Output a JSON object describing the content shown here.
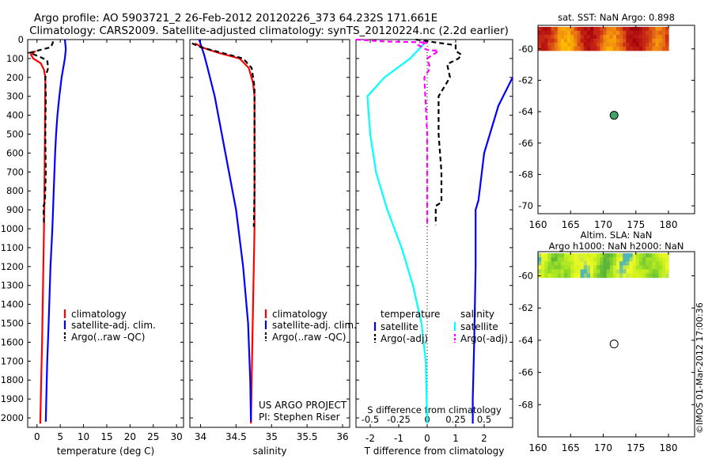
{
  "header": {
    "line1": "Argo profile: AO 5903721_2 26-Feb-2012 20120226_373 64.232S 171.661E",
    "line2": "Climatology: CARS2009. Satellite-adjusted climatology: synTS_20120224.nc (2.2d earlier)"
  },
  "footer": {
    "project": "US ARGO PROJECT",
    "pi": "PI: Stephen Riser",
    "stamp": "©IMOS 01-Mar-2012 17:00:36"
  },
  "colors": {
    "climatology": "#ff0000",
    "satellite": "#0000ff",
    "argo": "#000000",
    "sal_satellite": "#00ffff",
    "sal_argo": "#ff00ff"
  },
  "chart_data": [
    {
      "id": "temperature",
      "type": "line",
      "xlabel": "temperature (deg C)",
      "ylabel": "",
      "xlim": [
        -2,
        31.5
      ],
      "ylim": [
        2050,
        0
      ],
      "xticks": [
        0,
        5,
        10,
        15,
        20,
        25,
        30
      ],
      "yticks": [
        0,
        100,
        200,
        300,
        400,
        500,
        600,
        700,
        800,
        900,
        1000,
        1100,
        1200,
        1300,
        1400,
        1500,
        1600,
        1700,
        1800,
        1900,
        2000
      ],
      "legend": [
        "climatology",
        "satellite-adj. clim.",
        "Argo(..raw -QC)"
      ],
      "series": [
        {
          "name": "climatology",
          "style": "solid",
          "points": [
            [
              -0.3,
              60
            ],
            [
              -1.3,
              80
            ],
            [
              -0.8,
              100
            ],
            [
              0.8,
              125
            ],
            [
              1.5,
              160
            ],
            [
              1.8,
              200
            ],
            [
              1.75,
              300
            ],
            [
              1.7,
              500
            ],
            [
              1.6,
              800
            ],
            [
              1.5,
              1000
            ],
            [
              1.3,
              1300
            ],
            [
              1.1,
              1600
            ],
            [
              0.9,
              1800
            ],
            [
              0.7,
              2030
            ]
          ]
        },
        {
          "name": "satellite-adj. clim.",
          "style": "solid",
          "points": [
            [
              6,
              0
            ],
            [
              6.2,
              50
            ],
            [
              6,
              100
            ],
            [
              5.3,
              200
            ],
            [
              4.8,
              300
            ],
            [
              4.4,
              400
            ],
            [
              4.1,
              500
            ],
            [
              3.9,
              600
            ],
            [
              3.6,
              800
            ],
            [
              3.3,
              1000
            ],
            [
              2.9,
              1200
            ],
            [
              2.5,
              1500
            ],
            [
              2.2,
              1700
            ],
            [
              2.0,
              1900
            ],
            [
              1.9,
              2020
            ]
          ]
        },
        {
          "name": "Argo(..raw -QC)",
          "style": "dashed",
          "points": [
            [
              3.5,
              10
            ],
            [
              3,
              40
            ],
            [
              -1.6,
              70
            ],
            [
              0.5,
              90
            ],
            [
              2.2,
              110
            ],
            [
              2.4,
              150
            ],
            [
              1.8,
              200
            ],
            [
              1.9,
              300
            ],
            [
              1.8,
              500
            ],
            [
              1.9,
              700
            ],
            [
              1.7,
              860
            ],
            [
              1.4,
              880
            ],
            [
              1.5,
              980
            ]
          ]
        }
      ]
    },
    {
      "id": "salinity",
      "type": "line",
      "xlabel": "salinity",
      "ylabel": "",
      "xlim": [
        33.85,
        36.1
      ],
      "ylim": [
        2050,
        0
      ],
      "xticks": [
        34,
        34.5,
        35,
        35.5,
        36
      ],
      "legend": [
        "climatology",
        "satellite-adj. clim.",
        "Argo(..raw -QC)"
      ],
      "series": [
        {
          "name": "climatology",
          "style": "solid",
          "points": [
            [
              33.92,
              20
            ],
            [
              34.05,
              45
            ],
            [
              34.25,
              70
            ],
            [
              34.55,
              100
            ],
            [
              34.68,
              150
            ],
            [
              34.74,
              230
            ],
            [
              34.76,
              300
            ],
            [
              34.76,
              1000
            ],
            [
              34.74,
              1400
            ],
            [
              34.72,
              1800
            ],
            [
              34.71,
              2030
            ]
          ]
        },
        {
          "name": "satellite-adj. clim.",
          "style": "solid",
          "points": [
            [
              33.98,
              0
            ],
            [
              34.05,
              80
            ],
            [
              34.1,
              150
            ],
            [
              34.2,
              300
            ],
            [
              34.3,
              500
            ],
            [
              34.4,
              700
            ],
            [
              34.5,
              900
            ],
            [
              34.6,
              1200
            ],
            [
              34.67,
              1500
            ],
            [
              34.7,
              1800
            ],
            [
              34.71,
              2020
            ]
          ]
        },
        {
          "name": "Argo(..raw -QC)",
          "style": "dashed",
          "points": [
            [
              33.88,
              20
            ],
            [
              34.0,
              40
            ],
            [
              34.3,
              70
            ],
            [
              34.6,
              100
            ],
            [
              34.72,
              150
            ],
            [
              34.76,
              250
            ],
            [
              34.76,
              500
            ],
            [
              34.76,
              800
            ],
            [
              34.75,
              990
            ]
          ]
        }
      ]
    },
    {
      "id": "difference",
      "type": "line",
      "xlabel": "T difference from climatology",
      "xlabel_top": "S difference from climatology",
      "xlim": [
        -2.5,
        3.0
      ],
      "ylim": [
        2050,
        0
      ],
      "xticks": [
        -2,
        -1,
        0,
        1,
        2
      ],
      "xticks_s": [
        -0.5,
        -0.25,
        0,
        0.25,
        0.5
      ],
      "legend": {
        "col1_title": "temperature",
        "col2_title": "salinity",
        "items": [
          "satellite",
          "Argo(-adj)",
          "satellite",
          "Argo(-adj)"
        ]
      },
      "series": [
        {
          "name": "temperature satellite",
          "style": "solid",
          "color": "#0000ff",
          "points": [
            [
              3.0,
              200
            ],
            [
              2.5,
              350
            ],
            [
              2.0,
              600
            ],
            [
              1.8,
              850
            ],
            [
              1.7,
              900
            ],
            [
              1.7,
              1200
            ],
            [
              1.65,
              1600
            ],
            [
              1.6,
              1900
            ],
            [
              1.6,
              2030
            ]
          ]
        },
        {
          "name": "temperature Argo(-adj)",
          "style": "dashed",
          "color": "#000000",
          "points": [
            [
              -0.4,
              0
            ],
            [
              1.0,
              30
            ],
            [
              1.0,
              60
            ],
            [
              1.2,
              80
            ],
            [
              1.1,
              100
            ],
            [
              0.7,
              130
            ],
            [
              0.8,
              200
            ],
            [
              0.4,
              300
            ],
            [
              0.4,
              500
            ],
            [
              0.5,
              700
            ],
            [
              0.5,
              860
            ],
            [
              0.3,
              880
            ],
            [
              0.3,
              980
            ]
          ]
        },
        {
          "name": "salinity satellite",
          "style": "solid",
          "color": "#00ffff",
          "points": [
            [
              -0.1,
              20
            ],
            [
              -0.6,
              100
            ],
            [
              -1.5,
              200
            ],
            [
              -2.1,
              300
            ],
            [
              -2.0,
              500
            ],
            [
              -1.8,
              700
            ],
            [
              -1.4,
              900
            ],
            [
              -0.9,
              1100
            ],
            [
              -0.5,
              1300
            ],
            [
              -0.2,
              1500
            ],
            [
              -0.05,
              1700
            ],
            [
              0.0,
              2030
            ]
          ]
        },
        {
          "name": "salinity Argo(-adj)",
          "style": "dashed",
          "color": "#ff00ff",
          "points": [
            [
              -2.5,
              0
            ],
            [
              -1.5,
              10
            ],
            [
              0.0,
              15
            ],
            [
              -0.3,
              30
            ],
            [
              0.0,
              55
            ],
            [
              0.4,
              60
            ],
            [
              0.0,
              100
            ],
            [
              0.1,
              150
            ],
            [
              -0.1,
              200
            ],
            [
              0.0,
              500
            ],
            [
              0.0,
              800
            ],
            [
              0.0,
              990
            ]
          ]
        }
      ]
    },
    {
      "id": "sst_map",
      "type": "heatmap",
      "title": "sat. SST: NaN Argo: 0.898",
      "xlim": [
        160,
        184
      ],
      "ylim": [
        -70.5,
        -58.5
      ],
      "xticks": [
        160,
        165,
        170,
        175,
        180
      ],
      "yticks": [
        -60,
        -62,
        -64,
        -66,
        -68,
        -70
      ],
      "argo_position": {
        "lon": 171.661,
        "lat": -64.232
      }
    },
    {
      "id": "sla_map",
      "type": "heatmap",
      "title": "Altim. SLA: NaN",
      "subtitle": "Argo h1000: NaN h2000: NaN",
      "xlim": [
        160,
        184
      ],
      "ylim": [
        -70,
        -58.5
      ],
      "xticks": [
        160,
        165,
        170,
        175,
        180
      ],
      "yticks": [
        -60,
        -62,
        -64,
        -66,
        -68
      ],
      "argo_position": {
        "lon": 171.661,
        "lat": -64.232
      }
    }
  ]
}
